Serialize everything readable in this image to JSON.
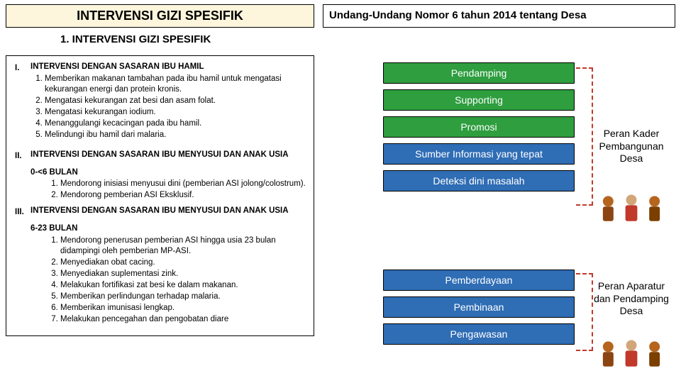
{
  "header": {
    "left_title": "INTERVENSI GIZI SPESIFIK",
    "right_title": "Undang-Undang Nomor 6 tahun 2014 tentang Desa",
    "left_bg": "#fdf6dc"
  },
  "subhead": "1. INTERVENSI GIZI SPESIFIK",
  "sections": [
    {
      "roman": "I.",
      "title": "INTERVENSI DENGAN SASARAN IBU HAMIL",
      "items": [
        "Memberikan makanan tambahan pada ibu hamil untuk mengatasi kekurangan energi dan protein kronis.",
        "Mengatasi kekurangan zat besi dan asam folat.",
        "Mengatasi kekurangan iodium.",
        "Menanggulangi kecacingan pada ibu hamil.",
        "Melindungi ibu hamil dari malaria."
      ]
    },
    {
      "roman": "II.",
      "title": "INTERVENSI DENGAN SASARAN IBU MENYUSUI DAN ANAK USIA",
      "subtitle": "0-<6 BULAN",
      "items": [
        "Mendorong inisiasi menyusui dini (pemberian ASI jolong/colostrum).",
        "Mendorong pemberian ASI Eksklusif."
      ]
    },
    {
      "roman": "III.",
      "title": "INTERVENSI DENGAN SASARAN IBU MENYUSUI DAN ANAK USIA",
      "subtitle": "6-23 BULAN",
      "items": [
        "Mendorong penerusan pemberian ASI hingga usia 23 bulan didampingi oleh pemberian MP-ASI.",
        "Menyediakan obat cacing.",
        "Menyediakan suplementasi zink.",
        "Melakukan fortifikasi zat besi ke dalam makanan.",
        "Memberikan perlindungan terhadap malaria.",
        "Memberikan imunisasi lengkap.",
        "Melakukan pencegahan dan pengobatan diare"
      ]
    }
  ],
  "group1": {
    "boxes": [
      {
        "label": "Pendamping",
        "color": "green"
      },
      {
        "label": "Supporting",
        "color": "green"
      },
      {
        "label": "Promosi",
        "color": "green"
      },
      {
        "label": "Sumber Informasi yang tepat",
        "color": "blue"
      },
      {
        "label": "Deteksi dini masalah",
        "color": "blue"
      }
    ],
    "caption": "Peran Kader Pembangunan Desa"
  },
  "group2": {
    "boxes": [
      {
        "label": "Pemberdayaan",
        "color": "blue"
      },
      {
        "label": "Pembinaan",
        "color": "blue"
      },
      {
        "label": "Pengawasan",
        "color": "blue"
      }
    ],
    "caption": "Peran Aparatur dan Pendamping Desa"
  },
  "colors": {
    "green": "#2e9e3f",
    "blue": "#2f6db5",
    "dash": "#c0392b"
  }
}
